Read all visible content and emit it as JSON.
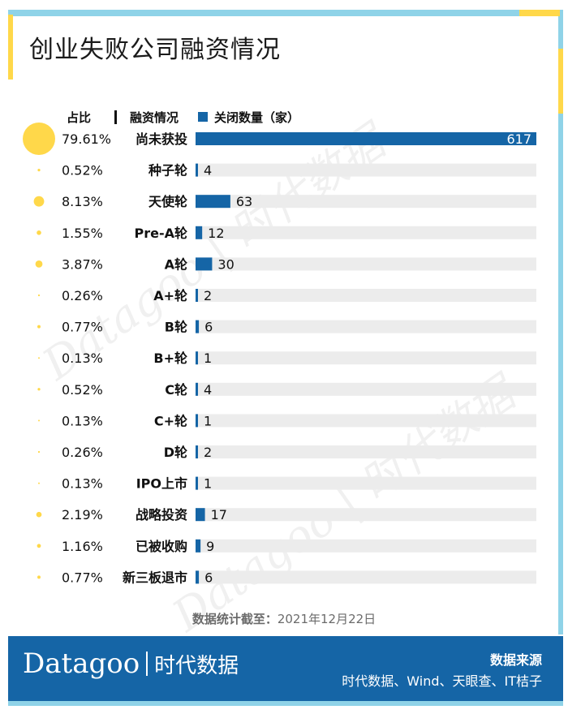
{
  "title": "创业失败公司融资情况",
  "headers": {
    "share": "占比",
    "financing": "融资情况",
    "closed": "关闭数量（家）"
  },
  "chart_data": {
    "type": "bar",
    "orientation": "horizontal",
    "title": "创业失败公司融资情况",
    "legend": "关闭数量（家）",
    "categories": [
      "尚未获投",
      "种子轮",
      "天使轮",
      "Pre-A轮",
      "A轮",
      "A+轮",
      "B轮",
      "B+轮",
      "C轮",
      "C+轮",
      "D轮",
      "IPO上市",
      "战略投资",
      "已被收购",
      "新三板退市"
    ],
    "values": [
      617,
      4,
      63,
      12,
      30,
      2,
      6,
      1,
      4,
      1,
      2,
      1,
      17,
      9,
      6
    ],
    "shares": [
      "79.61%",
      "0.52%",
      "8.13%",
      "1.55%",
      "3.87%",
      "0.26%",
      "0.77%",
      "0.13%",
      "0.52%",
      "0.13%",
      "0.26%",
      "0.13%",
      "2.19%",
      "1.16%",
      "0.77%"
    ],
    "xlim": [
      0,
      617
    ]
  },
  "date": {
    "label": "数据统计截至：",
    "value": "2021年12月22日"
  },
  "footer": {
    "brand_en": "Datagoo",
    "brand_cn": "时代数据",
    "source_title": "数据来源",
    "source_text": "时代数据、Wind、天眼查、IT桔子"
  },
  "watermark_text": "Datagoo | 时代数据",
  "colors": {
    "bar": "#1565a6",
    "track": "#ececec",
    "bubble": "#ffd84a",
    "cyan": "#8fd3e8",
    "footer": "#1565a6"
  }
}
